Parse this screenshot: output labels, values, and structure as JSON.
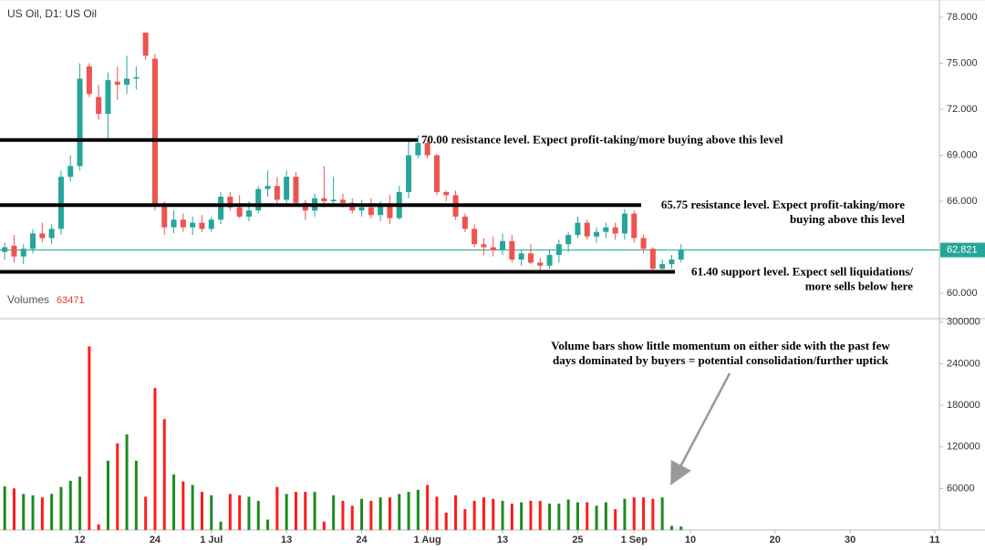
{
  "chart_data": {
    "type": "candlestick",
    "title": "US Oil, D1: US Oil",
    "open": [
      62.7,
      63.1,
      62.4,
      62.9,
      63.9,
      63.6,
      64.2,
      67.6,
      68.3,
      74.8,
      72.8,
      71.7,
      73.8,
      73.6,
      74.0,
      77.0,
      75.3,
      65.7,
      64.3,
      64.8,
      64.3,
      64.6,
      64.2,
      64.8,
      66.3,
      65.6,
      65.0,
      65.4,
      66.8,
      67.0,
      66.1,
      67.6,
      65.9,
      65.4,
      66.2,
      66.0,
      66.1,
      65.9,
      65.4,
      65.6,
      65.1,
      65.7,
      64.9,
      66.6,
      69.0,
      69.8,
      69.0,
      66.6,
      66.4,
      65.0,
      64.2,
      63.2,
      63.0,
      62.8,
      63.4,
      62.2,
      62.6,
      62.0,
      61.8,
      62.5,
      63.2,
      63.8,
      64.6,
      63.7,
      64.0,
      64.3,
      63.9,
      65.2,
      63.6,
      62.9,
      61.6,
      61.9,
      62.2
    ],
    "high": [
      63.3,
      63.8,
      63.2,
      64.2,
      64.6,
      64.5,
      68.0,
      69.0,
      75.0,
      75.0,
      73.6,
      74.4,
      74.8,
      75.5,
      74.8,
      77.0,
      75.6,
      66.0,
      65.4,
      65.2,
      65.0,
      65.1,
      65.0,
      66.6,
      66.6,
      66.4,
      66.0,
      67.0,
      68.0,
      67.6,
      68.0,
      67.9,
      66.1,
      66.5,
      68.3,
      67.6,
      66.5,
      66.2,
      66.1,
      66.2,
      66.0,
      66.4,
      67.0,
      70.0,
      70.3,
      70.0,
      69.1,
      66.7,
      66.7,
      65.2,
      64.5,
      63.6,
      63.7,
      63.9,
      63.8,
      62.8,
      63.2,
      62.3,
      62.8,
      63.5,
      64.0,
      65.0,
      64.8,
      64.3,
      64.6,
      64.6,
      65.5,
      65.4,
      63.8,
      63.0,
      62.2,
      62.5,
      63.2
    ],
    "low": [
      62.2,
      62.0,
      61.9,
      62.6,
      63.3,
      63.2,
      63.8,
      67.3,
      68.0,
      72.8,
      71.3,
      70.0,
      72.6,
      73.0,
      73.3,
      75.2,
      65.4,
      63.8,
      63.9,
      64.0,
      63.8,
      64.0,
      64.0,
      64.5,
      65.4,
      64.9,
      64.7,
      65.2,
      66.3,
      65.8,
      65.9,
      65.7,
      64.8,
      65.0,
      65.6,
      65.7,
      65.6,
      65.2,
      65.0,
      64.9,
      64.7,
      64.5,
      64.8,
      66.2,
      68.8,
      68.8,
      66.4,
      66.0,
      64.8,
      64.0,
      63.0,
      62.5,
      62.4,
      62.5,
      62.0,
      61.8,
      61.9,
      61.5,
      61.6,
      62.0,
      62.7,
      63.6,
      63.5,
      63.3,
      63.6,
      63.5,
      63.5,
      63.3,
      62.6,
      61.3,
      61.4,
      61.6,
      62.0
    ],
    "close": [
      63.0,
      62.4,
      62.9,
      63.9,
      63.6,
      64.2,
      67.6,
      68.3,
      74.0,
      73.0,
      71.7,
      73.9,
      73.6,
      74.0,
      74.1,
      75.5,
      65.7,
      64.3,
      64.8,
      64.3,
      64.6,
      64.2,
      64.8,
      66.3,
      65.6,
      65.0,
      65.4,
      66.8,
      67.0,
      66.1,
      67.6,
      65.9,
      65.4,
      66.2,
      66.0,
      66.1,
      65.9,
      65.4,
      65.6,
      65.1,
      65.7,
      64.9,
      66.6,
      69.0,
      69.8,
      69.0,
      66.6,
      66.4,
      65.0,
      64.2,
      63.2,
      63.0,
      62.8,
      63.4,
      62.2,
      62.6,
      62.0,
      61.8,
      62.5,
      63.2,
      63.8,
      64.6,
      63.7,
      64.0,
      64.3,
      63.9,
      65.2,
      63.6,
      62.9,
      61.6,
      61.9,
      62.2,
      62.821
    ],
    "volume": [
      63000,
      60000,
      52000,
      50000,
      47000,
      52000,
      62000,
      71000,
      77000,
      265000,
      8000,
      100000,
      125000,
      138000,
      100000,
      48000,
      205000,
      160000,
      80000,
      70000,
      65000,
      55000,
      50000,
      12000,
      52000,
      50000,
      48000,
      42000,
      15000,
      62000,
      52000,
      55000,
      55000,
      55000,
      12000,
      50000,
      42000,
      35000,
      45000,
      42000,
      47000,
      47000,
      52000,
      55000,
      58000,
      65000,
      48000,
      25000,
      50000,
      30000,
      42000,
      47000,
      45000,
      42000,
      38000,
      40000,
      42000,
      42000,
      38000,
      38000,
      44000,
      40000,
      40000,
      35000,
      40000,
      30000,
      45000,
      47000,
      47000,
      45000,
      47000,
      6000,
      5000
    ],
    "up_color": "#26a69a",
    "down_color": "#ef5350",
    "volume_up_color": "#1e8a1e",
    "volume_down_color": "#ff1a1a",
    "xlim": [
      -0.5,
      99.5
    ],
    "xticks": [
      {
        "value": 8,
        "label": "12"
      },
      {
        "value": 16,
        "label": "24"
      },
      {
        "value": 22,
        "label": "1 Jul"
      },
      {
        "value": 30,
        "label": "13"
      },
      {
        "value": 38,
        "label": "24"
      },
      {
        "value": 45,
        "label": "1 Aug"
      },
      {
        "value": 53,
        "label": "13"
      },
      {
        "value": 61,
        "label": "25"
      },
      {
        "value": 67,
        "label": "1 Sep"
      },
      {
        "value": 73,
        "label": "10"
      },
      {
        "value": 82,
        "label": "20"
      },
      {
        "value": 90,
        "label": "30"
      },
      {
        "value": 99,
        "label": "11"
      }
    ],
    "ylim": [
      58.34,
      79.13
    ],
    "yticks": [
      {
        "value": 60,
        "label": "60.000"
      },
      {
        "value": 63,
        "label": "63.000"
      },
      {
        "value": 66,
        "label": "66.000"
      },
      {
        "value": 69,
        "label": "69.000"
      },
      {
        "value": 72,
        "label": "72.000"
      },
      {
        "value": 75,
        "label": "75.000"
      },
      {
        "value": 78,
        "label": "78.000"
      }
    ],
    "last_price": 62.821,
    "last_price_color": "#26a69a",
    "volume_pane_label": "Volumes",
    "volume_readout": 63471,
    "volume_ylim": [
      0,
      305000
    ],
    "volume_yticks": [
      60000,
      120000,
      180000,
      240000,
      300000
    ],
    "grid": false,
    "annotations": [
      {
        "value": 70.0,
        "text": [
          "70.00 resistance level. Expect profit-taking/more buying above this level"
        ]
      },
      {
        "value": 65.75,
        "text": [
          "65.75 resistance level. Expect profit-taking/more",
          "buying above this level"
        ]
      },
      {
        "value": 61.4,
        "text": [
          "61.40 support level. Expect sell liquidations/",
          "more sells below here"
        ]
      }
    ],
    "volume_note": [
      "Volume bars show little momentum on either side with the past few",
      "days dominated by buyers = potential consolidation/further uptick"
    ]
  }
}
